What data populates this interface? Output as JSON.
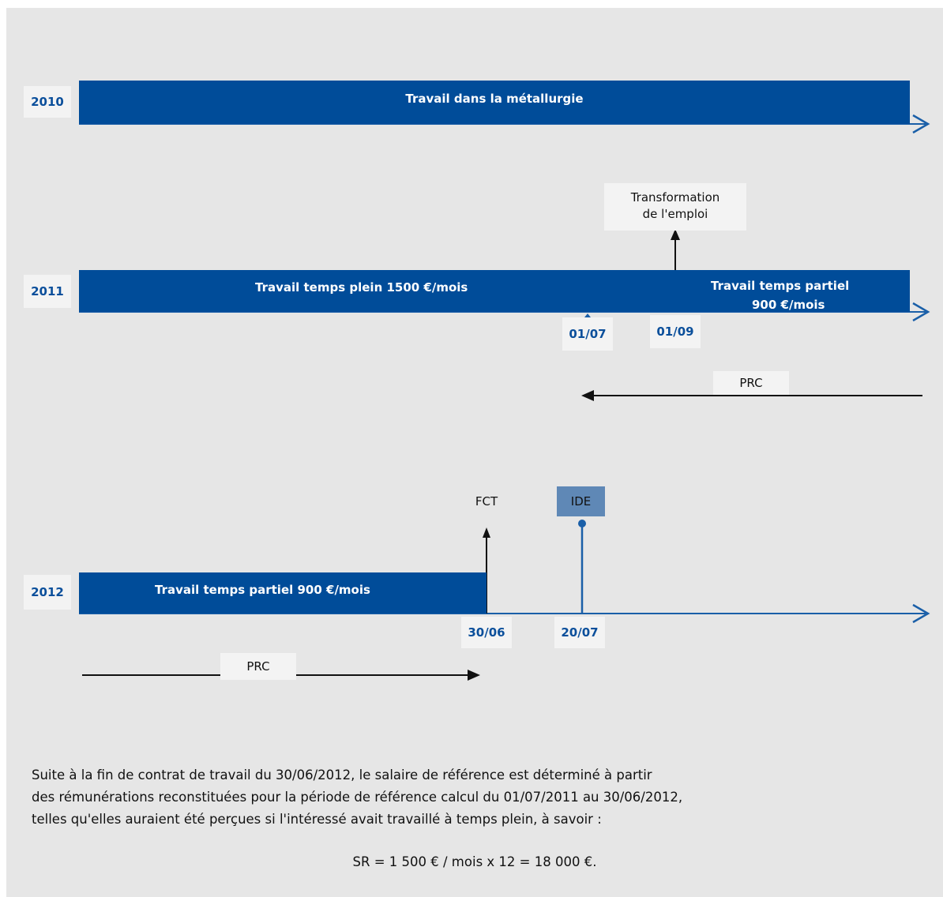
{
  "colors": {
    "background": "#e6e6e6",
    "bar": "#004c99",
    "date_text": "#0b4f9b",
    "ide_box": "#5f88b6"
  },
  "rows": {
    "y2010": {
      "year": "2010",
      "bar_label": "Travail dans la métallurgie"
    },
    "y2011": {
      "year": "2011",
      "bar_label_full": "Travail temps plein 1500 €/mois",
      "bar_label_partial_line1": "Travail temps partiel",
      "bar_label_partial_line2": "900 €/mois",
      "event_label_line1": "Transformation",
      "event_label_line2": "de l'emploi",
      "date1": "01/07",
      "date2": "01/09",
      "prc": "PRC"
    },
    "y2012": {
      "year": "2012",
      "bar_label": "Travail temps partiel 900 €/mois",
      "fct": "FCT",
      "ide": "IDE",
      "date1": "30/06",
      "date2": "20/07",
      "prc": "PRC"
    }
  },
  "explanation": {
    "line1": "Suite à la fin de contrat de travail du 30/06/2012, le salaire de référence est déterminé à partir",
    "line2": "des rémunérations reconstituées pour la période de référence calcul du 01/07/2011 au 30/06/2012,",
    "line3": "telles qu'elles auraient été perçues si l'intéressé avait travaillé à temps plein, à savoir :",
    "formula": "SR = 1 500 € / mois x 12  =  18 000 €."
  }
}
